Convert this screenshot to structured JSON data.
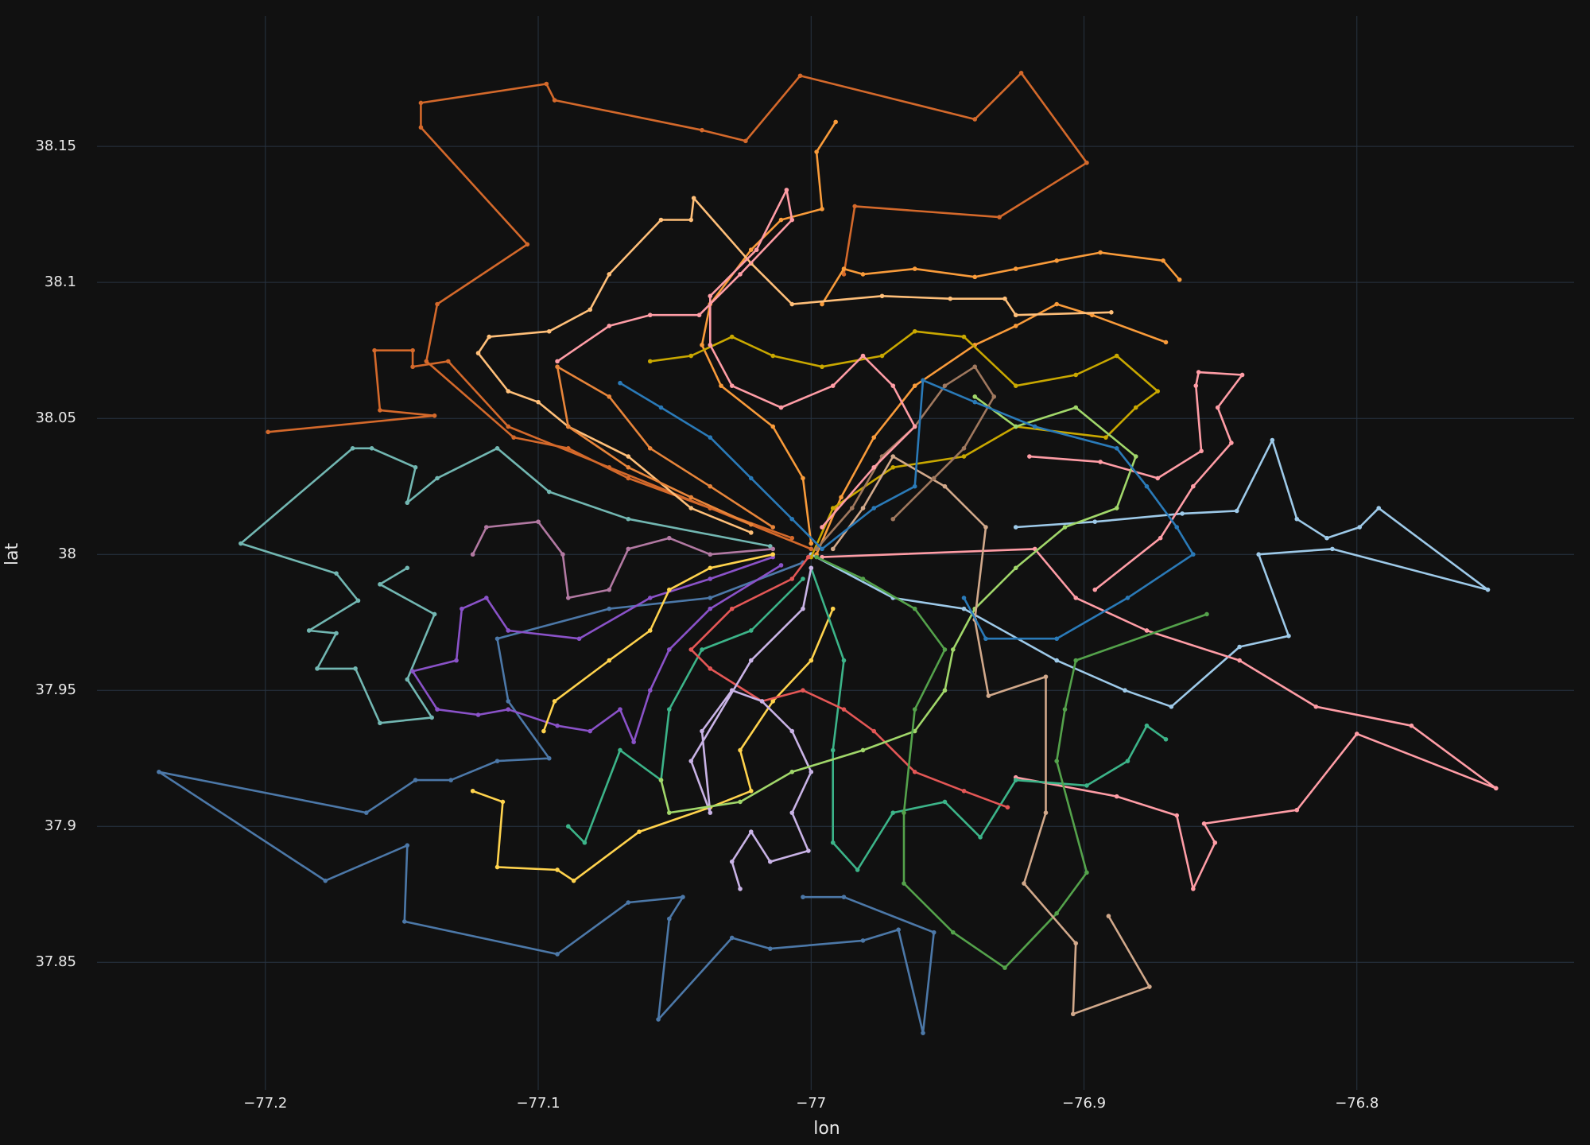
{
  "chart_data": {
    "type": "line",
    "x_label": "lon",
    "y_label": "lat",
    "xlim": [
      -77.2617,
      -76.7204
    ],
    "ylim": [
      37.803,
      38.198
    ],
    "xticks": [
      {
        "value": -77.2,
        "label": "−77.2"
      },
      {
        "value": -77.1,
        "label": "−77.1"
      },
      {
        "value": -77,
        "label": "−77"
      },
      {
        "value": -76.9,
        "label": "−76.9"
      },
      {
        "value": -76.8,
        "label": "−76.8"
      }
    ],
    "yticks": [
      37.85,
      37.9,
      37.95,
      38,
      38.05,
      38.1,
      38.15
    ],
    "grid": true,
    "markers": true,
    "series": [
      {
        "color": "#d4692b",
        "x": [
          -77.0,
          -77.037,
          -77.067,
          -77.089,
          -77.109,
          -77.141,
          -77.137,
          -77.104,
          -77.143,
          -77.143,
          -77.097,
          -77.094,
          -77.04,
          -77.024,
          -77.004,
          -76.94,
          -76.923,
          -76.899,
          -76.931,
          -76.984,
          -76.988
        ],
        "values": [
          38.002,
          38.017,
          38.028,
          38.039,
          38.043,
          38.071,
          38.092,
          38.114,
          38.157,
          38.166,
          38.173,
          38.167,
          38.156,
          38.152,
          38.176,
          38.16,
          38.177,
          38.144,
          38.124,
          38.128,
          38.103
        ]
      },
      {
        "color": "#d4692b",
        "x": [
          -77.007,
          -77.037,
          -77.074,
          -77.111,
          -77.133,
          -77.146,
          -77.146,
          -77.16,
          -77.158,
          -77.138,
          -77.199
        ],
        "values": [
          38.006,
          38.017,
          38.032,
          38.047,
          38.071,
          38.069,
          38.075,
          38.075,
          38.053,
          38.051,
          38.045
        ]
      },
      {
        "color": "#72b7b2",
        "x": [
          -77.015,
          -77.067,
          -77.096,
          -77.115,
          -77.137,
          -77.148,
          -77.145,
          -77.161,
          -77.168,
          -77.209,
          -77.174,
          -77.166,
          -77.184,
          -77.174,
          -77.181,
          -77.167,
          -77.158,
          -77.139,
          -77.148,
          -77.138,
          -77.158,
          -77.148
        ],
        "values": [
          38.003,
          38.013,
          38.023,
          38.039,
          38.028,
          38.019,
          38.032,
          38.039,
          38.039,
          38.004,
          37.993,
          37.983,
          37.972,
          37.971,
          37.958,
          37.958,
          37.938,
          37.94,
          37.954,
          37.978,
          37.989,
          37.995
        ]
      },
      {
        "color": "#4c78a8",
        "x": [
          -77.003,
          -76.988,
          -76.955,
          -76.959,
          -76.968,
          -76.981,
          -77.015,
          -77.029,
          -77.056,
          -77.052,
          -77.047,
          -77.067,
          -77.093,
          -77.149,
          -77.148,
          -77.178,
          -77.239,
          -77.163,
          -77.145,
          -77.132,
          -77.115,
          -77.096,
          -77.111,
          -77.115,
          -77.074,
          -77.037,
          -77.003
        ],
        "values": [
          37.874,
          37.874,
          37.861,
          37.824,
          37.862,
          37.858,
          37.855,
          37.859,
          37.829,
          37.866,
          37.874,
          37.872,
          37.853,
          37.865,
          37.893,
          37.88,
          37.92,
          37.905,
          37.917,
          37.917,
          37.924,
          37.925,
          37.946,
          37.969,
          37.98,
          37.984,
          37.997
        ]
      },
      {
        "color": "#9ecae9",
        "x": [
          -77.0,
          -76.97,
          -76.944,
          -76.91,
          -76.885,
          -76.868,
          -76.843,
          -76.825,
          -76.836,
          -76.809,
          -76.752,
          -76.792,
          -76.799,
          -76.811,
          -76.822,
          -76.831,
          -76.844,
          -76.864,
          -76.896,
          -76.925
        ],
        "values": [
          38.0,
          37.984,
          37.98,
          37.961,
          37.95,
          37.944,
          37.966,
          37.97,
          38.0,
          38.002,
          37.987,
          38.017,
          38.01,
          38.006,
          38.013,
          38.042,
          38.016,
          38.015,
          38.012,
          38.01
        ]
      },
      {
        "color": "#ff9da6",
        "x": [
          -76.996,
          -76.918,
          -76.903,
          -76.877,
          -76.843,
          -76.815,
          -76.78,
          -76.749,
          -76.8,
          -76.822,
          -76.856,
          -76.852,
          -76.86,
          -76.866,
          -76.888,
          -76.925
        ],
        "values": [
          37.999,
          38.002,
          37.984,
          37.972,
          37.961,
          37.944,
          37.937,
          37.914,
          37.934,
          37.906,
          37.901,
          37.894,
          37.877,
          37.904,
          37.911,
          37.918
        ]
      },
      {
        "color": "#ff9da6",
        "x": [
          -76.92,
          -76.894,
          -76.873,
          -76.857,
          -76.859,
          -76.858,
          -76.842,
          -76.851,
          -76.846,
          -76.86,
          -76.872,
          -76.896
        ],
        "values": [
          38.036,
          38.034,
          38.028,
          38.038,
          38.062,
          38.067,
          38.066,
          38.054,
          38.041,
          38.025,
          38.006,
          37.987
        ]
      },
      {
        "color": "#f99b3a",
        "x": [
          -76.991,
          -76.998,
          -76.996,
          -77.011,
          -77.022,
          -77.037,
          -77.04,
          -77.033,
          -77.014,
          -77.003,
          -77.0
        ],
        "values": [
          38.159,
          38.148,
          38.127,
          38.123,
          38.112,
          38.092,
          38.077,
          38.062,
          38.047,
          38.028,
          38.004
        ]
      },
      {
        "color": "#f99b3a",
        "x": [
          -76.998,
          -76.989,
          -76.977,
          -76.962,
          -76.94,
          -76.925,
          -76.91,
          -76.897,
          -76.87
        ],
        "values": [
          38.0,
          38.021,
          38.043,
          38.062,
          38.077,
          38.084,
          38.092,
          38.088,
          38.078
        ]
      },
      {
        "color": "#f99b3a",
        "x": [
          -76.996,
          -76.988,
          -76.981,
          -76.962,
          -76.94,
          -76.925,
          -76.91,
          -76.894,
          -76.871,
          -76.865
        ],
        "values": [
          38.092,
          38.105,
          38.103,
          38.105,
          38.102,
          38.105,
          38.108,
          38.111,
          38.108,
          38.101
        ]
      },
      {
        "color": "#ffbf79",
        "x": [
          -77.022,
          -77.044,
          -77.067,
          -77.089,
          -77.1,
          -77.111,
          -77.122,
          -77.118,
          -77.096,
          -77.081,
          -77.074,
          -77.055,
          -77.044,
          -77.043,
          -77.022,
          -77.007,
          -76.974,
          -76.949,
          -76.929,
          -76.925,
          -76.89
        ],
        "values": [
          38.008,
          38.017,
          38.036,
          38.047,
          38.056,
          38.06,
          38.074,
          38.08,
          38.082,
          38.09,
          38.103,
          38.123,
          38.123,
          38.131,
          38.107,
          38.092,
          38.095,
          38.094,
          38.094,
          38.088,
          38.089
        ]
      },
      {
        "color": "#c9a800",
        "x": [
          -77.059,
          -77.044,
          -77.029,
          -77.014,
          -76.996,
          -76.974,
          -76.962,
          -76.944,
          -76.925,
          -76.903,
          -76.888,
          -76.873,
          -76.881,
          -76.892,
          -76.925,
          -76.944,
          -76.97,
          -76.992,
          -77.0
        ],
        "values": [
          38.071,
          38.073,
          38.08,
          38.073,
          38.069,
          38.073,
          38.082,
          38.08,
          38.062,
          38.066,
          38.073,
          38.06,
          38.054,
          38.043,
          38.047,
          38.036,
          38.032,
          38.017,
          37.999
        ]
      },
      {
        "color": "#8a52c8",
        "x": [
          -77.011,
          -77.037,
          -77.052,
          -77.059,
          -77.065,
          -77.07,
          -77.081,
          -77.093,
          -77.111,
          -77.122,
          -77.137,
          -77.146,
          -77.13,
          -77.128,
          -77.119,
          -77.111,
          -77.085,
          -77.059,
          -77.037,
          -77.014
        ],
        "values": [
          37.996,
          37.98,
          37.965,
          37.95,
          37.931,
          37.943,
          37.935,
          37.937,
          37.943,
          37.941,
          37.943,
          37.957,
          37.961,
          37.98,
          37.984,
          37.972,
          37.969,
          37.984,
          37.991,
          37.999
        ]
      },
      {
        "color": "#b279a2",
        "x": [
          -77.124,
          -77.119,
          -77.1,
          -77.091,
          -77.089,
          -77.074,
          -77.067,
          -77.052,
          -77.037,
          -77.014
        ],
        "values": [
          38.0,
          38.01,
          38.012,
          38.0,
          37.984,
          37.987,
          38.002,
          38.006,
          38.0,
          38.002
        ]
      },
      {
        "color": "#ffd34d",
        "x": [
          -77.124,
          -77.113,
          -77.115,
          -77.093,
          -77.087,
          -77.063,
          -77.037,
          -77.022,
          -77.026,
          -77.014,
          -77.0,
          -76.992
        ],
        "values": [
          37.913,
          37.909,
          37.885,
          37.884,
          37.88,
          37.898,
          37.907,
          37.913,
          37.928,
          37.946,
          37.961,
          37.98
        ]
      },
      {
        "color": "#ffd34d",
        "x": [
          -77.098,
          -77.094,
          -77.074,
          -77.059,
          -77.052,
          -77.037,
          -77.014
        ],
        "values": [
          37.935,
          37.946,
          37.961,
          37.972,
          37.987,
          37.995,
          38.0
        ]
      },
      {
        "color": "#3cb489",
        "x": [
          -77.089,
          -77.083,
          -77.07,
          -77.055,
          -77.052,
          -77.04,
          -77.022,
          -77.003
        ],
        "values": [
          37.9,
          37.894,
          37.928,
          37.917,
          37.943,
          37.965,
          37.972,
          37.991
        ]
      },
      {
        "color": "#3cb489",
        "x": [
          -77.0,
          -76.988,
          -76.992,
          -76.992,
          -76.983,
          -76.97,
          -76.951,
          -76.938,
          -76.925,
          -76.899,
          -76.884,
          -76.877,
          -76.87
        ],
        "values": [
          37.995,
          37.961,
          37.928,
          37.894,
          37.884,
          37.905,
          37.909,
          37.896,
          37.917,
          37.915,
          37.924,
          37.937,
          37.932
        ]
      },
      {
        "color": "#e45756",
        "x": [
          -77.001,
          -77.007,
          -77.029,
          -77.044,
          -77.037,
          -77.018,
          -77.003,
          -76.988,
          -76.977,
          -76.962,
          -76.944,
          -76.928
        ],
        "values": [
          37.999,
          37.991,
          37.98,
          37.965,
          37.958,
          37.946,
          37.95,
          37.943,
          37.935,
          37.92,
          37.913,
          37.907
        ]
      },
      {
        "color": "#c9b3e6",
        "x": [
          -77.0,
          -77.003,
          -77.022,
          -77.044,
          -77.037,
          -77.04,
          -77.029,
          -77.018,
          -77.007,
          -77.0,
          -77.007,
          -77.001,
          -77.015,
          -77.022,
          -77.029,
          -77.026
        ],
        "values": [
          37.995,
          37.98,
          37.961,
          37.924,
          37.905,
          37.935,
          37.95,
          37.946,
          37.935,
          37.92,
          37.905,
          37.891,
          37.887,
          37.898,
          37.887,
          37.877
        ]
      },
      {
        "color": "#a1d76a",
        "x": [
          -77.055,
          -77.052,
          -77.026,
          -77.007,
          -76.981,
          -76.962,
          -76.951,
          -76.948,
          -76.94,
          -76.925,
          -76.907,
          -76.888,
          -76.881,
          -76.903,
          -76.925,
          -76.94
        ],
        "values": [
          37.917,
          37.905,
          37.909,
          37.92,
          37.928,
          37.935,
          37.95,
          37.965,
          37.98,
          37.995,
          38.01,
          38.017,
          38.036,
          38.054,
          38.047,
          38.058
        ]
      },
      {
        "color": "#54a24b",
        "x": [
          -76.998,
          -76.981,
          -76.962,
          -76.951,
          -76.962,
          -76.966,
          -76.966,
          -76.948,
          -76.929,
          -76.91,
          -76.899,
          -76.91,
          -76.907,
          -76.903,
          -76.855
        ],
        "values": [
          37.999,
          37.991,
          37.98,
          37.965,
          37.943,
          37.905,
          37.879,
          37.861,
          37.848,
          37.868,
          37.883,
          37.924,
          37.943,
          37.961,
          37.978
        ]
      },
      {
        "color": "#d2a98b",
        "x": [
          -76.992,
          -76.981,
          -76.97,
          -76.951,
          -76.936,
          -76.94,
          -76.935,
          -76.914,
          -76.914,
          -76.922,
          -76.903,
          -76.904,
          -76.876,
          -76.891
        ],
        "values": [
          38.002,
          38.017,
          38.036,
          38.025,
          38.01,
          37.976,
          37.948,
          37.955,
          37.905,
          37.879,
          37.857,
          37.831,
          37.841,
          37.867
        ]
      },
      {
        "color": "#a0785e",
        "x": [
          -76.998,
          -76.985,
          -76.974,
          -76.962,
          -76.951,
          -76.94,
          -76.933,
          -76.944,
          -76.955,
          -76.97
        ],
        "values": [
          38.002,
          38.017,
          38.036,
          38.047,
          38.062,
          38.069,
          38.058,
          38.039,
          38.028,
          38.013
        ]
      },
      {
        "color": "#2a7ab8",
        "x": [
          -77.07,
          -77.055,
          -77.037,
          -77.022,
          -77.007,
          -76.996,
          -76.977,
          -76.962,
          -76.959,
          -76.94,
          -76.918,
          -76.888,
          -76.877,
          -76.866,
          -76.86,
          -76.884,
          -76.91,
          -76.936,
          -76.944
        ],
        "values": [
          38.063,
          38.054,
          38.043,
          38.028,
          38.013,
          38.002,
          38.017,
          38.025,
          38.064,
          38.056,
          38.047,
          38.039,
          38.025,
          38.01,
          38.0,
          37.984,
          37.969,
          37.969,
          37.984
        ]
      },
      {
        "color": "#ff9da6",
        "x": [
          -76.996,
          -76.977,
          -76.962,
          -76.97,
          -76.981,
          -76.992,
          -77.011,
          -77.029,
          -77.037,
          -77.037,
          -77.02,
          -77.009,
          -77.007,
          -77.026,
          -77.041,
          -77.059,
          -77.074,
          -77.093
        ],
        "values": [
          38.01,
          38.032,
          38.047,
          38.062,
          38.073,
          38.062,
          38.054,
          38.062,
          38.077,
          38.095,
          38.112,
          38.134,
          38.123,
          38.103,
          38.088,
          38.088,
          38.084,
          38.071
        ]
      },
      {
        "color": "#e8853a",
        "x": [
          -77.014,
          -77.037,
          -77.059,
          -77.074,
          -77.093,
          -77.089,
          -77.067,
          -77.044,
          -77.022
        ],
        "values": [
          38.01,
          38.025,
          38.039,
          38.058,
          38.069,
          38.047,
          38.032,
          38.021,
          38.011
        ]
      }
    ]
  }
}
